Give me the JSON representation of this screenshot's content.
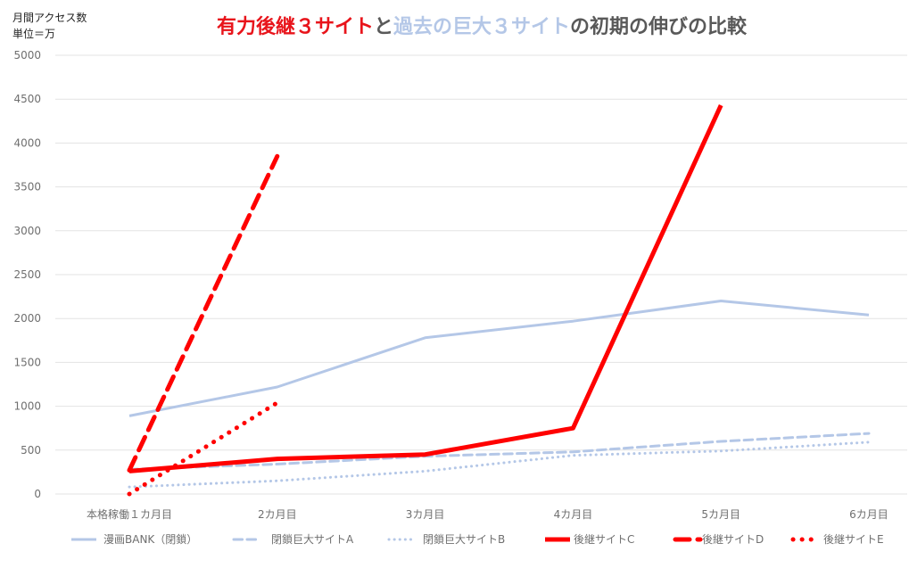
{
  "chart_data": {
    "type": "line",
    "title_parts": [
      {
        "text": "有力後継３サイト",
        "color": "#e8141b"
      },
      {
        "text": "と",
        "color": "#595959"
      },
      {
        "text": "過去の巨大３サイト",
        "color": "#b4c7e7"
      },
      {
        "text": "の初期の伸びの比較",
        "color": "#595959"
      }
    ],
    "ylabel_lines": [
      "月間アクセス数",
      "単位＝万"
    ],
    "ylim": [
      0,
      5000
    ],
    "yticks": [
      0,
      500,
      1000,
      1500,
      2000,
      2500,
      3000,
      3500,
      4000,
      4500,
      5000
    ],
    "categories": [
      "本格稼働１カ月目",
      "2カ月目",
      "3カ月目",
      "4カ月目",
      "5カ月目",
      "6カ月目"
    ],
    "grid": true,
    "legend_position": "bottom",
    "series": [
      {
        "name": "漫画BANK（閉鎖）",
        "color": "#b4c7e7",
        "style": "solid",
        "width": 3,
        "values": [
          890,
          1220,
          1780,
          1970,
          2200,
          2040
        ]
      },
      {
        "name": "閉鎖巨大サイトA",
        "color": "#b4c7e7",
        "style": "dashed",
        "width": 3,
        "values": [
          280,
          340,
          430,
          480,
          600,
          690
        ]
      },
      {
        "name": "閉鎖巨大サイトB",
        "color": "#b4c7e7",
        "style": "dotted",
        "width": 3,
        "values": [
          80,
          150,
          260,
          440,
          490,
          590
        ]
      },
      {
        "name": "後継サイトC",
        "color": "#ff0000",
        "style": "solid",
        "width": 5,
        "values": [
          260,
          400,
          450,
          750,
          4430,
          null
        ]
      },
      {
        "name": "後継サイトD",
        "color": "#ff0000",
        "style": "dashed",
        "width": 5,
        "values": [
          270,
          3850,
          null,
          null,
          null,
          null
        ]
      },
      {
        "name": "後継サイトE",
        "color": "#ff0000",
        "style": "dotted",
        "width": 5,
        "values": [
          0,
          1040,
          null,
          null,
          null,
          null
        ]
      }
    ]
  }
}
